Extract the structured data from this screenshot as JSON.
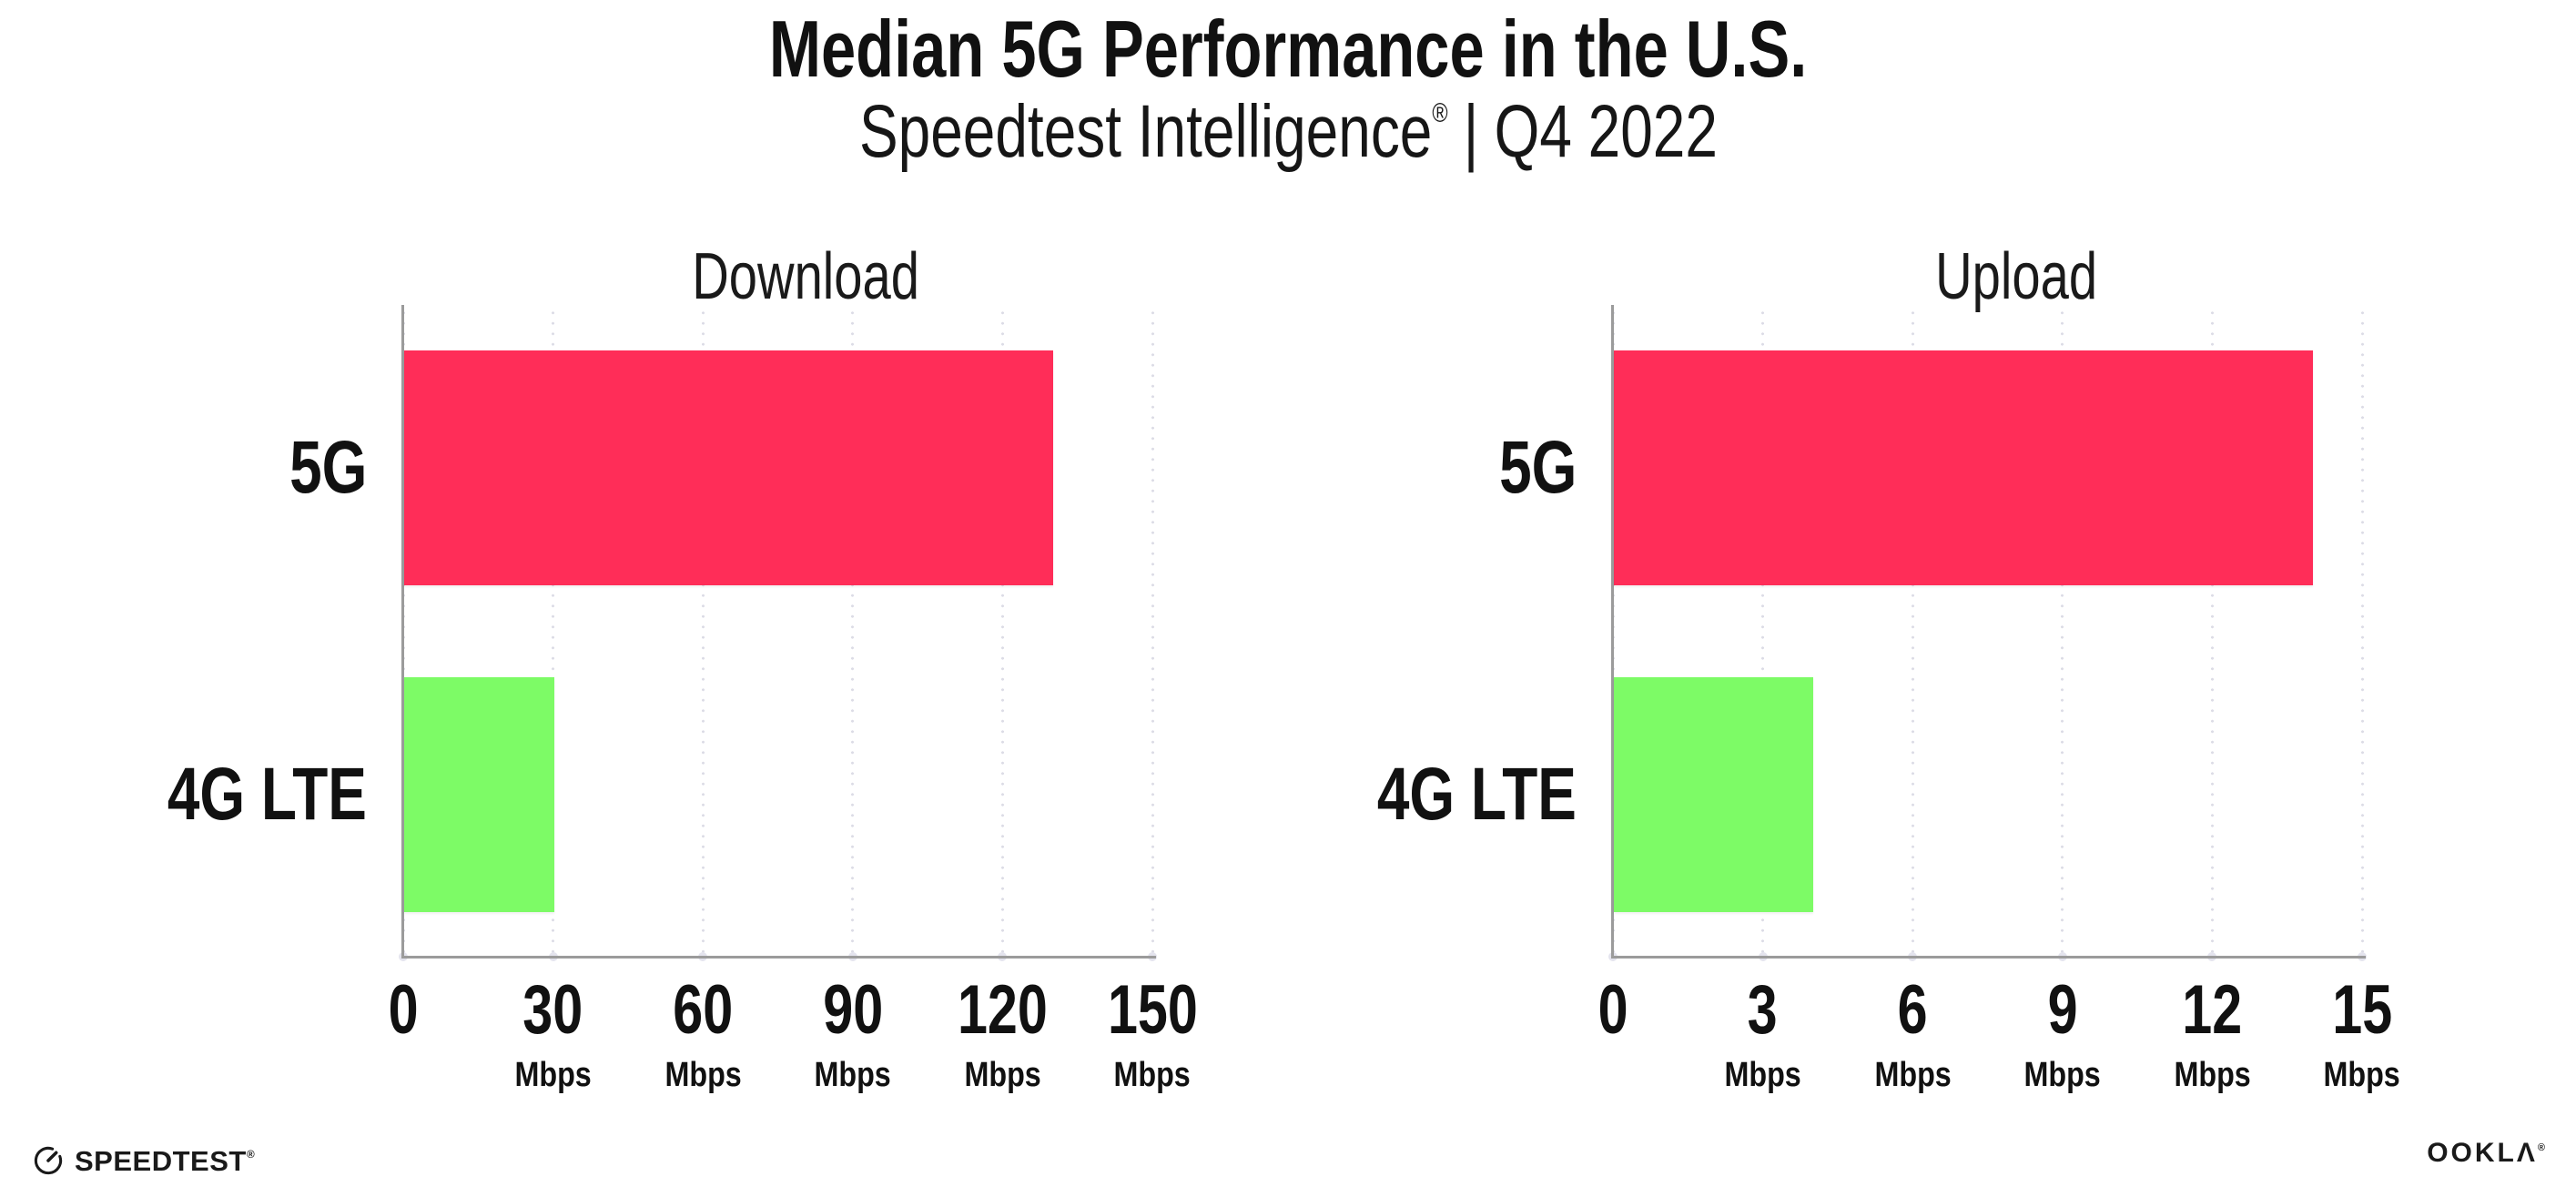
{
  "header": {
    "title": "Median 5G Performance in the U.S.",
    "subtitle_brand": "Speedtest Intelligence",
    "subtitle_reg": "®",
    "subtitle_sep": "|",
    "subtitle_period": "Q4 2022"
  },
  "chart_data": [
    {
      "type": "bar",
      "orientation": "horizontal",
      "title": "Download",
      "categories": [
        "5G",
        "4G LTE"
      ],
      "values": [
        130,
        30
      ],
      "unit": "Mbps",
      "xlim": [
        0,
        150
      ],
      "xticks": [
        0,
        30,
        60,
        90,
        120,
        150
      ],
      "xtick_unit": "Mbps",
      "bar_colors": [
        "#FF2D58",
        "#7DFB66"
      ],
      "grid": "dotted-vertical",
      "legend": "none"
    },
    {
      "type": "bar",
      "orientation": "horizontal",
      "title": "Upload",
      "categories": [
        "5G",
        "4G LTE"
      ],
      "values": [
        14,
        4
      ],
      "unit": "Mbps",
      "xlim": [
        0,
        15
      ],
      "xticks": [
        0,
        3,
        6,
        9,
        12,
        15
      ],
      "xtick_unit": "Mbps",
      "bar_colors": [
        "#FF2D58",
        "#7DFB66"
      ],
      "grid": "dotted-vertical",
      "legend": "none"
    }
  ],
  "footer": {
    "speedtest_label": "SPEEDTEST",
    "speedtest_mark": "®",
    "ookla_label": "OOKLΛ",
    "ookla_mark": "®"
  },
  "colors": {
    "bar_5g": "#FF2D58",
    "bar_4g_lte": "#7DFB66",
    "axis": "#9B9B9B",
    "grid_dot": "#DCDCE6",
    "text": "#111111",
    "background": "#FFFFFF"
  }
}
